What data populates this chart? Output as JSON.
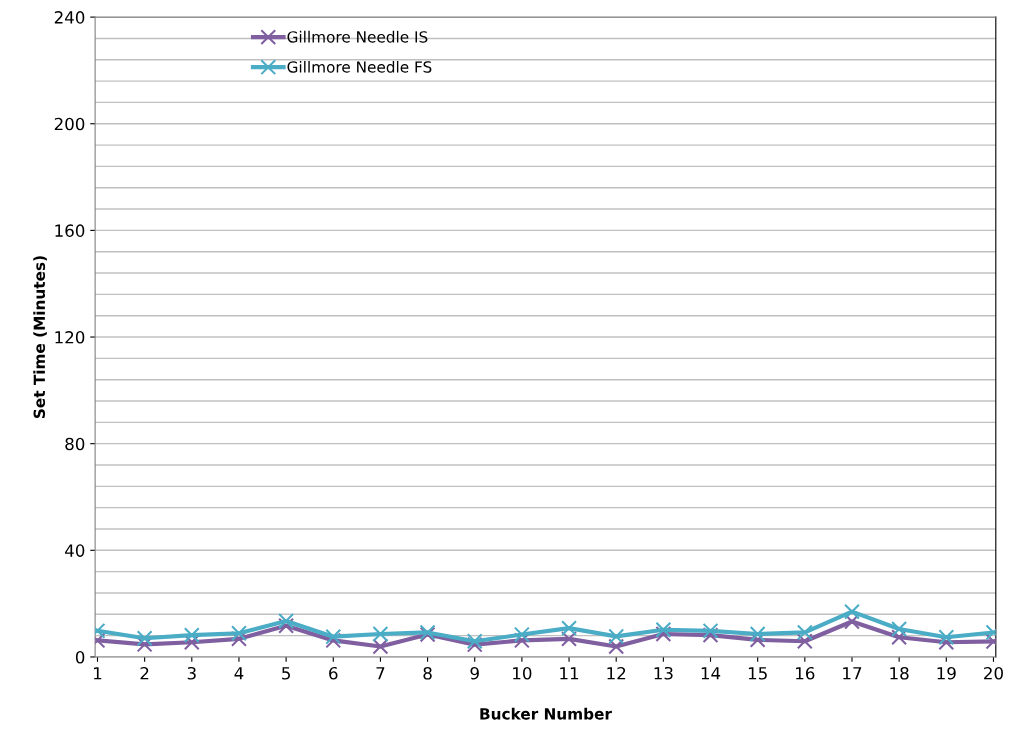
{
  "chart_data": {
    "type": "line",
    "xlabel": "Bucker Number",
    "ylabel": "Set Time (Minutes)",
    "categories": [
      "1",
      "2",
      "3",
      "4",
      "5",
      "6",
      "7",
      "8",
      "9",
      "10",
      "11",
      "12",
      "13",
      "14",
      "15",
      "16",
      "17",
      "18",
      "19",
      "20"
    ],
    "series": [
      {
        "name": "Gillmore Needle IS",
        "color": "#7f5fa0",
        "marker": "cross",
        "values": [
          6.2,
          4.7,
          5.5,
          6.8,
          11.7,
          6.2,
          3.9,
          8.4,
          4.6,
          6.2,
          6.8,
          3.9,
          8.6,
          8.2,
          6.4,
          5.9,
          13.3,
          7.4,
          5.5,
          5.8
        ]
      },
      {
        "name": "Gillmore Needle FS",
        "color": "#4bacc6",
        "marker": "cross",
        "values": [
          9.8,
          7.0,
          8.2,
          8.9,
          13.5,
          7.6,
          8.6,
          9.2,
          5.9,
          8.4,
          10.8,
          7.7,
          10.2,
          9.8,
          8.6,
          9.2,
          17.0,
          10.5,
          7.4,
          9.2
        ]
      }
    ],
    "ylim": [
      0,
      240
    ],
    "yticks": [
      0,
      {
        "value": 8,
        "label": null
      },
      {
        "value": 16,
        "label": null
      },
      {
        "value": 24,
        "label": null
      },
      {
        "value": 32,
        "label": null
      },
      40,
      {
        "value": 48,
        "label": null
      },
      {
        "value": 56,
        "label": null
      },
      {
        "value": 64,
        "label": null
      },
      {
        "value": 72,
        "label": null
      },
      80,
      {
        "value": 88,
        "label": null
      },
      {
        "value": 96,
        "label": null
      },
      {
        "value": 104,
        "label": null
      },
      {
        "value": 112,
        "label": null
      },
      120,
      {
        "value": 128,
        "label": null
      },
      {
        "value": 136,
        "label": null
      },
      {
        "value": 144,
        "label": null
      },
      {
        "value": 152,
        "label": null
      },
      160,
      {
        "value": 168,
        "label": null
      },
      {
        "value": 176,
        "label": null
      },
      {
        "value": 184,
        "label": null
      },
      {
        "value": 192,
        "label": null
      },
      200,
      {
        "value": 208,
        "label": null
      },
      {
        "value": 216,
        "label": null
      },
      {
        "value": 224,
        "label": null
      },
      {
        "value": 232,
        "label": null
      },
      240
    ],
    "grid": "y",
    "legend": "top left",
    "line_style": "solid"
  }
}
